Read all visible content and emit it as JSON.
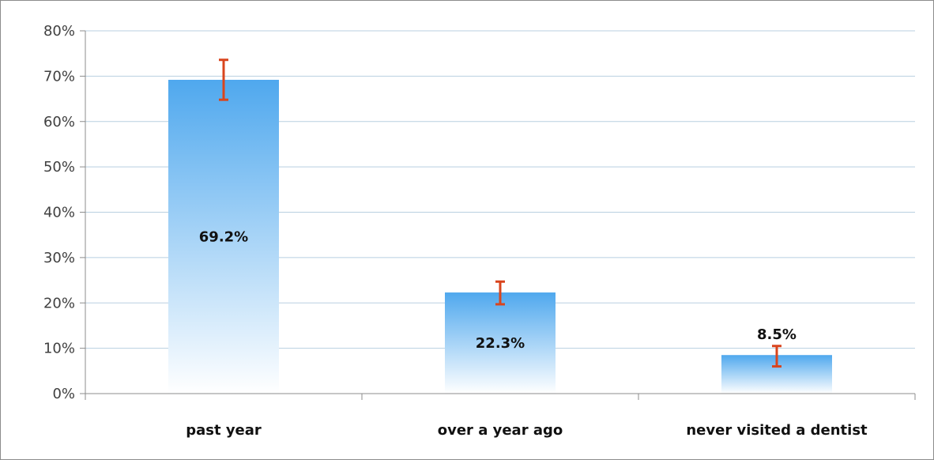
{
  "chart_data": {
    "type": "bar",
    "title": "",
    "xlabel": "",
    "ylabel": "",
    "categories": [
      "past year",
      "over a year ago",
      "never visited a dentist"
    ],
    "values": [
      69.2,
      22.3,
      8.5
    ],
    "data_labels": [
      "69.2%",
      "22.3%",
      "8.5%"
    ],
    "error_bars": [
      {
        "low": 64.8,
        "high": 73.6
      },
      {
        "low": 19.7,
        "high": 24.7
      },
      {
        "low": 6.0,
        "high": 10.5
      }
    ],
    "ylim": [
      0,
      80
    ],
    "yticks": [
      0,
      10,
      20,
      30,
      40,
      50,
      60,
      70,
      80
    ],
    "ytick_labels": [
      "0%",
      "10%",
      "20%",
      "30%",
      "40%",
      "50%",
      "60%",
      "70%",
      "80%"
    ],
    "grid": true,
    "legend": "none",
    "colors": {
      "bar_top": "#4fa8ee",
      "bar_bottom": "#ffffff",
      "error_bar": "#d9451e",
      "grid": "#b8cfe0",
      "axis": "#8c8c8c"
    }
  }
}
